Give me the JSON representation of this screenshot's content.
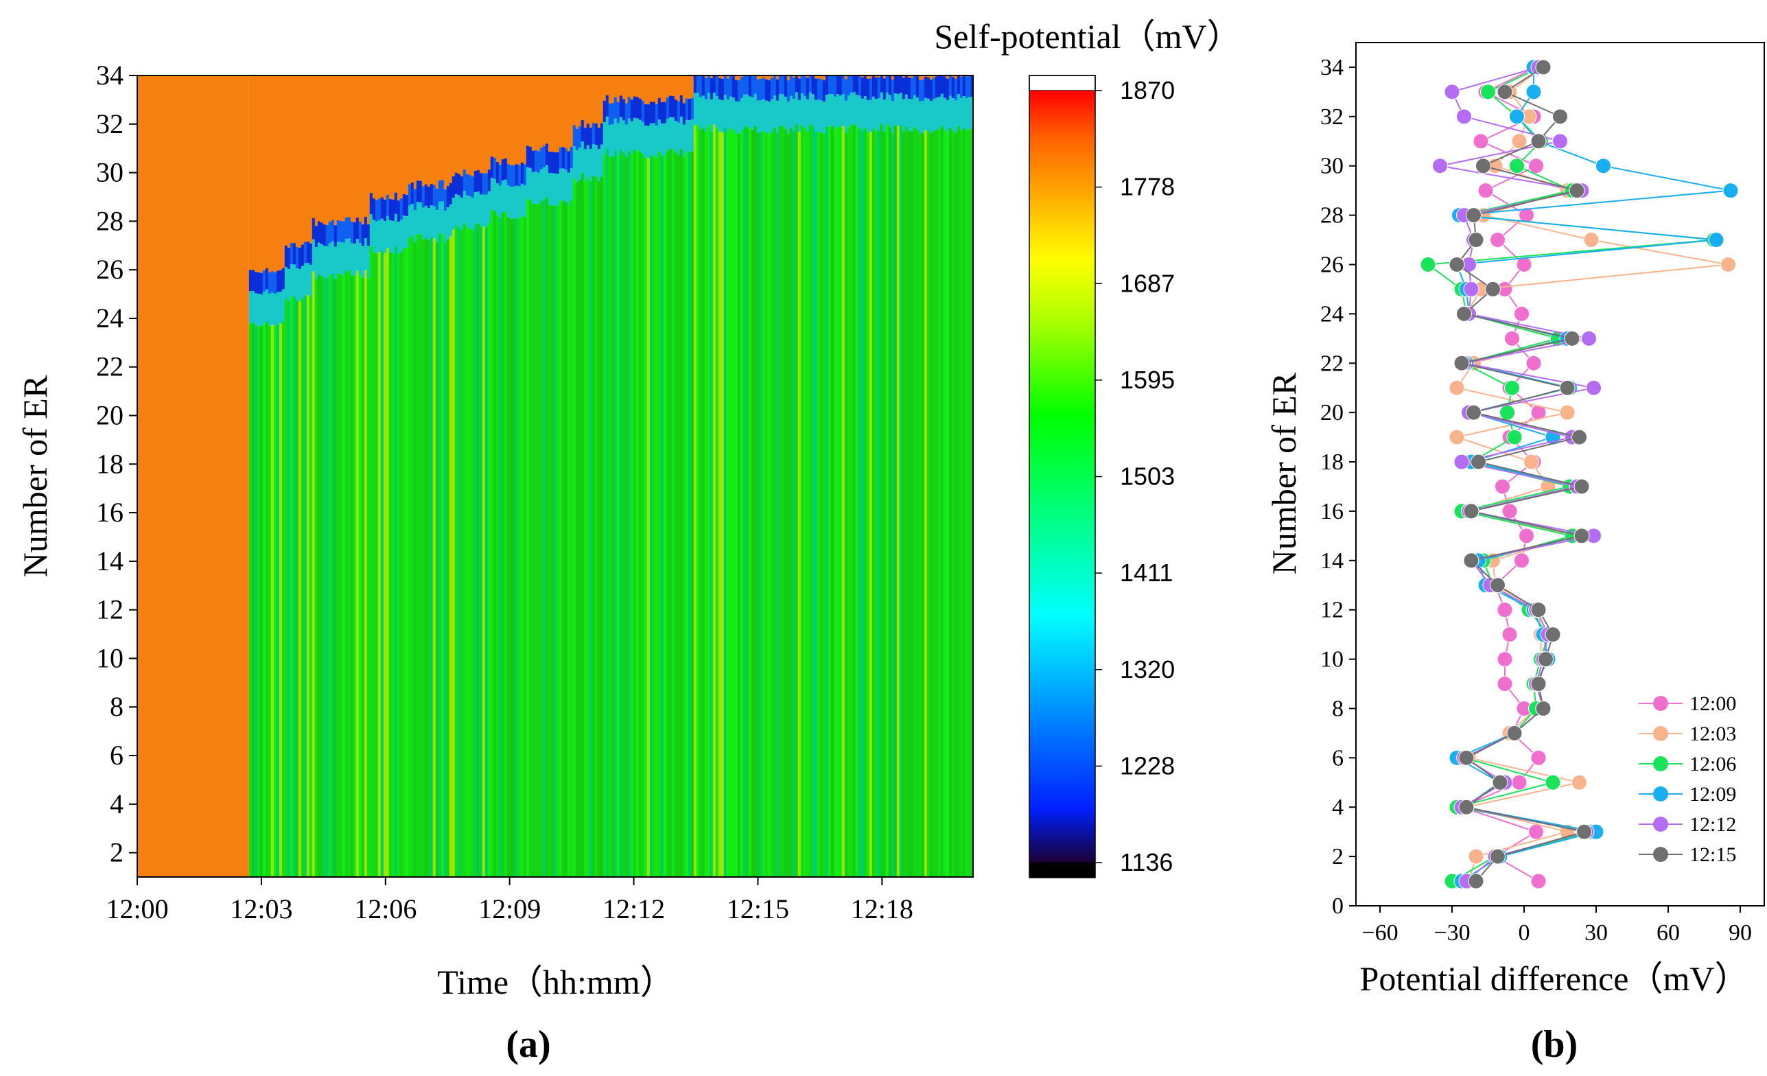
{
  "panel_labels": {
    "a": "(a)",
    "b": "(b)"
  },
  "colors": {
    "orange": "#f57f0f",
    "green": "#11dd11",
    "series_12_00": "#ef6fcf",
    "series_12_03": "#f9b38c",
    "series_12_06": "#19e35a",
    "series_12_09": "#18aef0",
    "series_12_12": "#b46cf2",
    "series_12_15": "#6f6f6f"
  },
  "colorbar": {
    "title": "Self-potential（mV）",
    "ticks": [
      "1870",
      "1778",
      "1687",
      "1595",
      "1503",
      "1411",
      "1320",
      "1228",
      "1136"
    ]
  },
  "chart_data": [
    {
      "type": "heatmap",
      "title": "",
      "xlabel": "Time（hh:mm）",
      "ylabel": "Number of ER",
      "x_tick_labels": [
        "12:00",
        "12:03",
        "12:06",
        "12:09",
        "12:12",
        "12:15",
        "12:18"
      ],
      "y_tick_labels": [
        "2",
        "4",
        "6",
        "8",
        "10",
        "12",
        "14",
        "16",
        "18",
        "20",
        "22",
        "24",
        "26",
        "28",
        "30",
        "32",
        "34"
      ],
      "xlim_minutes": [
        0,
        20.2
      ],
      "ylim": [
        1,
        34
      ],
      "value_range": [
        1136,
        1870
      ],
      "grid": false,
      "description_regions": {
        "pre_flow_end_minute": 2.7,
        "pre_flow_value": 1790,
        "saturated_value": 1560,
        "wetting_front_levels": [
          {
            "minute": 2.7,
            "er": 26
          },
          {
            "minute": 3.5,
            "er": 27
          },
          {
            "minute": 4.2,
            "er": 28
          },
          {
            "minute": 5.6,
            "er": 29
          },
          {
            "minute": 6.5,
            "er": 29.5
          },
          {
            "minute": 7.6,
            "er": 30
          },
          {
            "minute": 8.5,
            "er": 30.5
          },
          {
            "minute": 9.4,
            "er": 31
          },
          {
            "minute": 10.5,
            "er": 32
          },
          {
            "minute": 11.2,
            "er": 33
          },
          {
            "minute": 13.4,
            "er": 34
          }
        ]
      }
    },
    {
      "type": "line",
      "title": "",
      "xlabel": "Potential difference（mV）",
      "ylabel": "Number of ER",
      "xlim": [
        -70,
        100
      ],
      "ylim": [
        0,
        35
      ],
      "x_ticks": [
        -60,
        -30,
        0,
        30,
        60,
        90
      ],
      "y_ticks": [
        0,
        2,
        4,
        6,
        8,
        10,
        12,
        14,
        16,
        18,
        20,
        22,
        24,
        26,
        28,
        30,
        32,
        34
      ],
      "legend_position": "bottom-right",
      "y": [
        1,
        2,
        3,
        4,
        5,
        6,
        7,
        8,
        9,
        10,
        11,
        12,
        13,
        14,
        15,
        16,
        17,
        18,
        19,
        20,
        21,
        22,
        23,
        24,
        25,
        26,
        27,
        28,
        29,
        30,
        31,
        32,
        33,
        34
      ],
      "series": [
        {
          "name": "12:00",
          "x": [
            6,
            -12,
            5,
            -26,
            -2,
            6,
            -5,
            0,
            -8,
            -8,
            -6,
            -8,
            -12,
            -1,
            1,
            -6,
            -9,
            4,
            -6,
            6,
            -6,
            4,
            -5,
            -1,
            -8,
            0,
            -11,
            1,
            -16,
            5,
            -18,
            4,
            -16,
            5
          ]
        },
        {
          "name": "12:03",
          "x": [
            -23,
            -20,
            18,
            -24,
            23,
            -23,
            -6,
            5,
            4,
            7,
            7,
            6,
            -12,
            -13,
            21,
            -23,
            10,
            3,
            -28,
            18,
            -28,
            -21,
            16,
            -24,
            -18,
            85,
            28,
            -17,
            18,
            -12,
            -2,
            2,
            -6,
            8
          ]
        },
        {
          "name": "12:06",
          "x": [
            -30,
            -12,
            28,
            -28,
            12,
            -25,
            -4,
            5,
            4,
            7,
            10,
            2,
            -13,
            -17,
            20,
            -26,
            19,
            -22,
            -4,
            -7,
            -5,
            -25,
            14,
            -24,
            -26,
            -40,
            79,
            -26,
            20,
            -3,
            7,
            -3,
            -15,
            7
          ]
        },
        {
          "name": "12:09",
          "x": [
            -26,
            -10,
            30,
            -25,
            -10,
            -28,
            -4,
            8,
            5,
            10,
            8,
            4,
            -16,
            -19,
            24,
            -23,
            23,
            -22,
            12,
            -22,
            19,
            -24,
            18,
            -23,
            -24,
            -28,
            80,
            -27,
            86,
            33,
            6,
            -3,
            4,
            4
          ]
        },
        {
          "name": "12:12",
          "x": [
            -24,
            -12,
            26,
            -26,
            -8,
            -25,
            -4,
            8,
            5,
            8,
            10,
            5,
            -14,
            -22,
            29,
            -23,
            22,
            -26,
            20,
            -23,
            29,
            -25,
            27,
            -23,
            -22,
            -23,
            -21,
            -25,
            24,
            -35,
            15,
            -25,
            -30,
            6
          ]
        },
        {
          "name": "12:15",
          "x": [
            -20,
            -11,
            25,
            -24,
            -10,
            -24,
            -4,
            8,
            6,
            9,
            12,
            6,
            -11,
            -22,
            24,
            -22,
            24,
            -19,
            23,
            -21,
            18,
            -26,
            20,
            -25,
            -13,
            -28,
            -20,
            -21,
            22,
            -17,
            6,
            15,
            -8,
            8
          ]
        }
      ]
    }
  ]
}
